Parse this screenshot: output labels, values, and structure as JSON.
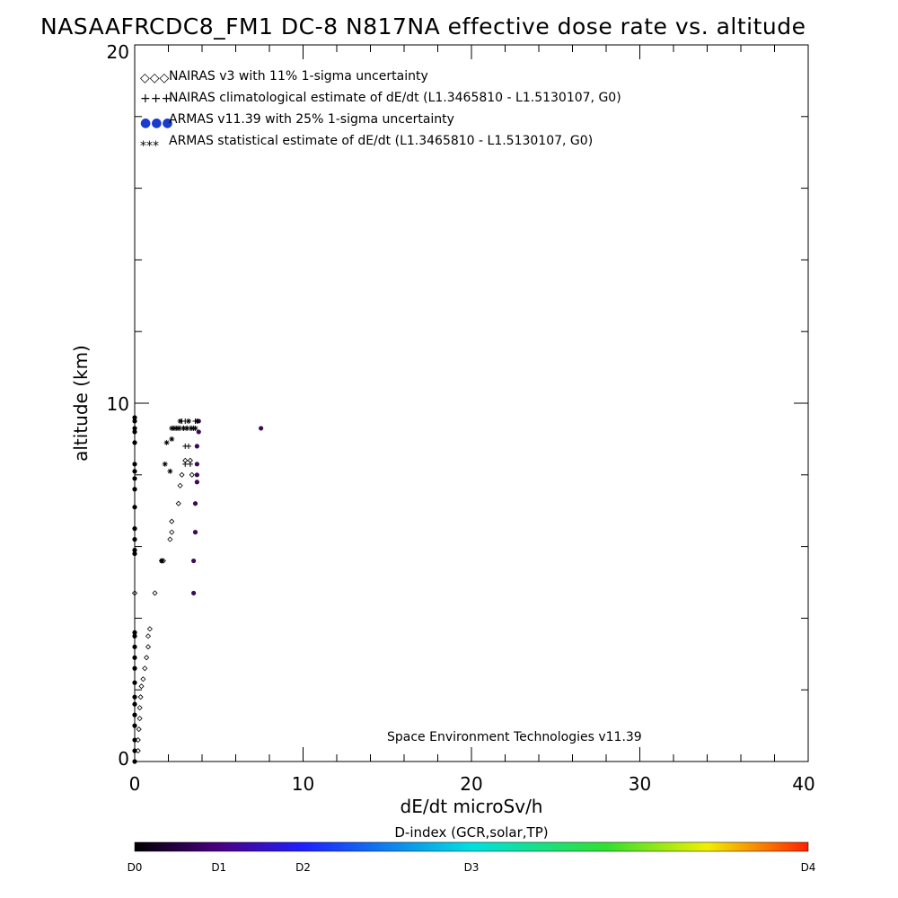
{
  "chart_data": {
    "type": "scatter",
    "title": "NASAAFRCDC8_FM1 DC-8   N817NA effective dose rate vs. altitude",
    "xlabel": "dE/dt microSv/h",
    "ylabel": "altitude (km)",
    "xlim": [
      0,
      40
    ],
    "ylim": [
      0,
      20
    ],
    "x_ticks": [
      "0",
      "10",
      "20",
      "30",
      "40"
    ],
    "y_ticks": [
      "0",
      "10",
      "20"
    ],
    "legend_position": "top-left",
    "grid": false,
    "credit": "Space Environment Technologies v11.39",
    "legend": [
      {
        "marker": "◇◇◇",
        "color": "#000000",
        "label": "NAIRAS v3 with 11% 1-sigma uncertainty"
      },
      {
        "marker": "+++",
        "color": "#000000",
        "label": "NAIRAS climatological estimate of dE/dt (L1.3465810 - L1.5130107, G0)"
      },
      {
        "marker": "●●●",
        "color": "#1a3ccc",
        "label": "ARMAS v11.39 with 25% 1-sigma uncertainty"
      },
      {
        "marker": "***",
        "color": "#000000",
        "label": "ARMAS statistical estimate of dE/dt (L1.3465810 - L1.5130107, G0)"
      }
    ],
    "colorbar": {
      "title": "D-index (GCR,solar,TP)",
      "labels": [
        "D0",
        "D1",
        "D2",
        "D3",
        "D4"
      ],
      "label_positions": [
        0,
        0.125,
        0.25,
        0.5,
        1.0
      ]
    },
    "series": [
      {
        "name": "NAIRAS v3 with 11% 1-sigma uncertainty",
        "marker": "diamond",
        "points": [
          [
            0.2,
            0.3
          ],
          [
            0.2,
            0.6
          ],
          [
            0.25,
            0.9
          ],
          [
            0.3,
            1.2
          ],
          [
            0.3,
            1.5
          ],
          [
            0.35,
            1.8
          ],
          [
            0.4,
            2.1
          ],
          [
            0.5,
            2.3
          ],
          [
            0.6,
            2.6
          ],
          [
            0.7,
            2.9
          ],
          [
            0.8,
            3.2
          ],
          [
            0.8,
            3.5
          ],
          [
            0.9,
            3.7
          ],
          [
            0,
            4.7
          ],
          [
            1.2,
            4.7
          ],
          [
            1.6,
            5.6
          ],
          [
            1.7,
            5.6
          ],
          [
            2.1,
            6.2
          ],
          [
            2.2,
            6.4
          ],
          [
            2.2,
            6.7
          ],
          [
            2.6,
            7.2
          ],
          [
            2.7,
            7.7
          ],
          [
            2.8,
            8.0
          ],
          [
            3.0,
            8.4
          ],
          [
            3.3,
            8.4
          ],
          [
            3.4,
            8.0
          ]
        ]
      },
      {
        "name": "NAIRAS climatological estimate of dE/dt",
        "marker": "plus",
        "points": [
          [
            2.3,
            9.3
          ],
          [
            2.5,
            9.3
          ],
          [
            2.7,
            9.3
          ],
          [
            2.9,
            9.3
          ],
          [
            3.1,
            9.3
          ],
          [
            3.3,
            9.3
          ],
          [
            3.5,
            9.3
          ],
          [
            3.6,
            9.5
          ],
          [
            3.0,
            9.5
          ],
          [
            2.8,
            9.5
          ],
          [
            3.0,
            8.8
          ],
          [
            3.2,
            8.8
          ],
          [
            3.0,
            8.3
          ],
          [
            3.3,
            8.3
          ]
        ]
      },
      {
        "name": "ARMAS v11.39 with 25% 1-sigma uncertainty",
        "marker": "dot",
        "points": [
          [
            0,
            0
          ],
          [
            0,
            0.3
          ],
          [
            0,
            0.6
          ],
          [
            0,
            1.0
          ],
          [
            0,
            1.3
          ],
          [
            0,
            1.6
          ],
          [
            0,
            1.8
          ],
          [
            0,
            2.2
          ],
          [
            0,
            2.6
          ],
          [
            0,
            2.9
          ],
          [
            0,
            3.2
          ],
          [
            0,
            3.5
          ],
          [
            0,
            3.6
          ],
          [
            0,
            5.8
          ],
          [
            0,
            5.9
          ],
          [
            0,
            6.2
          ],
          [
            0,
            6.5
          ],
          [
            0,
            7.1
          ],
          [
            0,
            7.6
          ],
          [
            0,
            7.9
          ],
          [
            0,
            8.1
          ],
          [
            0,
            8.3
          ],
          [
            0,
            8.9
          ],
          [
            0,
            9.2
          ],
          [
            0,
            9.3
          ],
          [
            0,
            9.5
          ],
          [
            0,
            9.6
          ],
          [
            3.5,
            4.7
          ],
          [
            3.5,
            5.6
          ],
          [
            3.6,
            6.4
          ],
          [
            3.6,
            7.2
          ],
          [
            3.7,
            7.8
          ],
          [
            3.7,
            8.0
          ],
          [
            3.7,
            8.3
          ],
          [
            3.7,
            8.8
          ],
          [
            3.8,
            9.2
          ],
          [
            3.8,
            9.5
          ],
          [
            7.5,
            9.3
          ]
        ]
      },
      {
        "name": "ARMAS statistical estimate of dE/dt",
        "marker": "asterisk",
        "points": [
          [
            1.6,
            5.6
          ],
          [
            1.8,
            8.3
          ],
          [
            1.9,
            8.9
          ],
          [
            2.1,
            8.1
          ],
          [
            2.2,
            9.0
          ],
          [
            2.2,
            9.3
          ],
          [
            2.4,
            9.3
          ],
          [
            2.6,
            9.3
          ],
          [
            2.7,
            9.5
          ],
          [
            2.9,
            9.3
          ],
          [
            3.1,
            9.3
          ],
          [
            3.2,
            9.5
          ],
          [
            3.4,
            9.3
          ],
          [
            3.6,
            9.3
          ],
          [
            3.7,
            9.5
          ]
        ]
      }
    ]
  }
}
